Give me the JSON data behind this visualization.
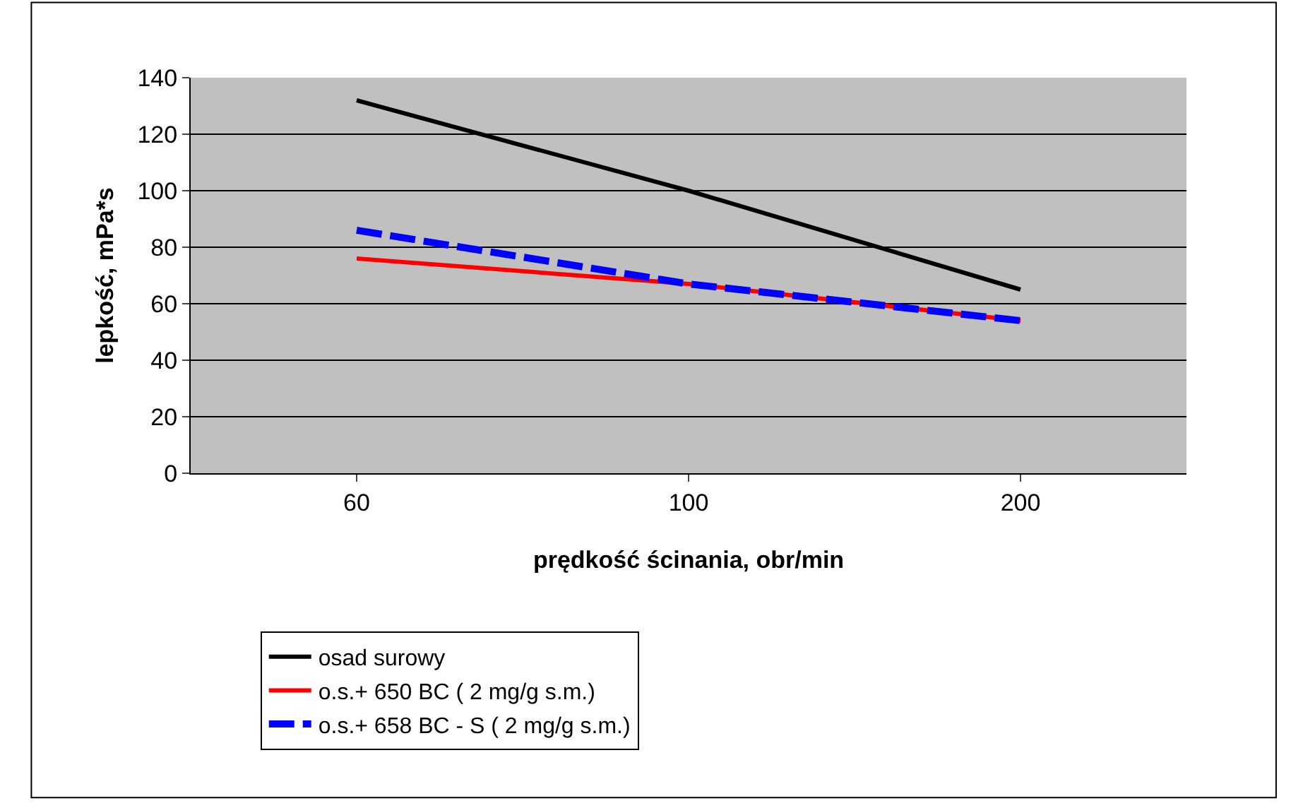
{
  "chart_data": {
    "type": "line",
    "xlabel": "prędkość ścinania, obr/min",
    "ylabel": "lepkość, mPa*s",
    "categories": [
      "60",
      "100",
      "200"
    ],
    "series": [
      {
        "name": "osad surowy",
        "color": "#000000",
        "values": [
          132,
          100,
          65
        ],
        "line_style": "solid"
      },
      {
        "name": "o.s.+ 650 BC ( 2 mg/g s.m.)",
        "color": "#ff0000",
        "values": [
          76,
          67,
          54
        ],
        "line_style": "solid"
      },
      {
        "name": "o.s.+ 658 BC - S ( 2 mg/g s.m.)",
        "color": "#0000ff",
        "values": [
          86,
          67,
          54
        ],
        "line_style": "dashed"
      }
    ],
    "ylim": [
      0,
      140
    ],
    "yticks": [
      0,
      20,
      40,
      60,
      80,
      100,
      120,
      140
    ],
    "grid": "y",
    "legend": "bottom",
    "marker": "none"
  }
}
